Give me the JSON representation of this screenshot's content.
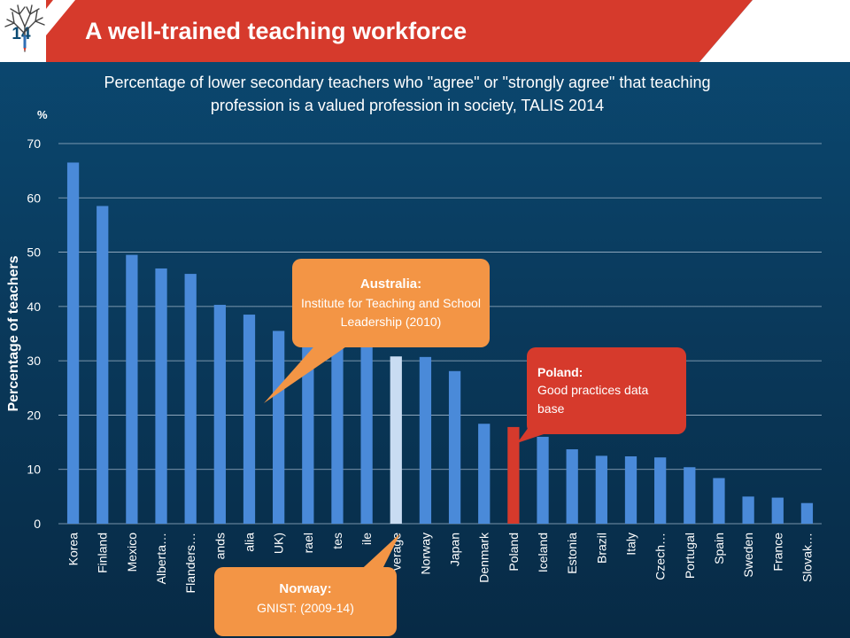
{
  "slide": {
    "number": "14",
    "title": "A well-trained teaching workforce"
  },
  "subtitle_line1": "Percentage of lower secondary teachers who \"agree\" or \"strongly agree\" that teaching",
  "subtitle_line2": "profession is a valued profession in society, TALIS 2014",
  "unit": "%",
  "chart_data": {
    "type": "bar",
    "ylabel": "Percentage of teachers",
    "ylim": [
      0,
      70
    ],
    "yticks": [
      0,
      10,
      20,
      30,
      40,
      50,
      60,
      70
    ],
    "grid": true,
    "categories": [
      "Korea",
      "Finland",
      "Mexico",
      "Alberta…",
      "Flanders…",
      "ands",
      "alia",
      "UK)",
      "rael",
      "tes",
      "ile",
      "verage",
      "Norway",
      "Japan",
      "Denmark",
      "Poland",
      "Iceland",
      "Estonia",
      "Brazil",
      "Italy",
      "Czech…",
      "Portugal",
      "Spain",
      "Sweden",
      "France",
      "Slovak…"
    ],
    "values": [
      66.5,
      58.5,
      49.5,
      47,
      46,
      40.3,
      38.5,
      35.5,
      35,
      34,
      33,
      30.8,
      30.7,
      28.1,
      18.4,
      17.8,
      16,
      13.7,
      12.5,
      12.4,
      12.2,
      10.4,
      8.4,
      5.0,
      4.8,
      3.8
    ],
    "colors": {
      "default": "#4a8ad9",
      "average": "#c9dcf2",
      "highlight": "#d63a2c"
    },
    "average_index": 11,
    "highlight_index": 15
  },
  "callouts": {
    "australia": {
      "head": "Australia:",
      "body": "Institute for Teaching and School Leadership (2010)"
    },
    "poland": {
      "head": "Poland:",
      "body": "Good practices data base"
    },
    "norway": {
      "head": "Norway:",
      "body": "GNIST: (2009-14)"
    }
  }
}
